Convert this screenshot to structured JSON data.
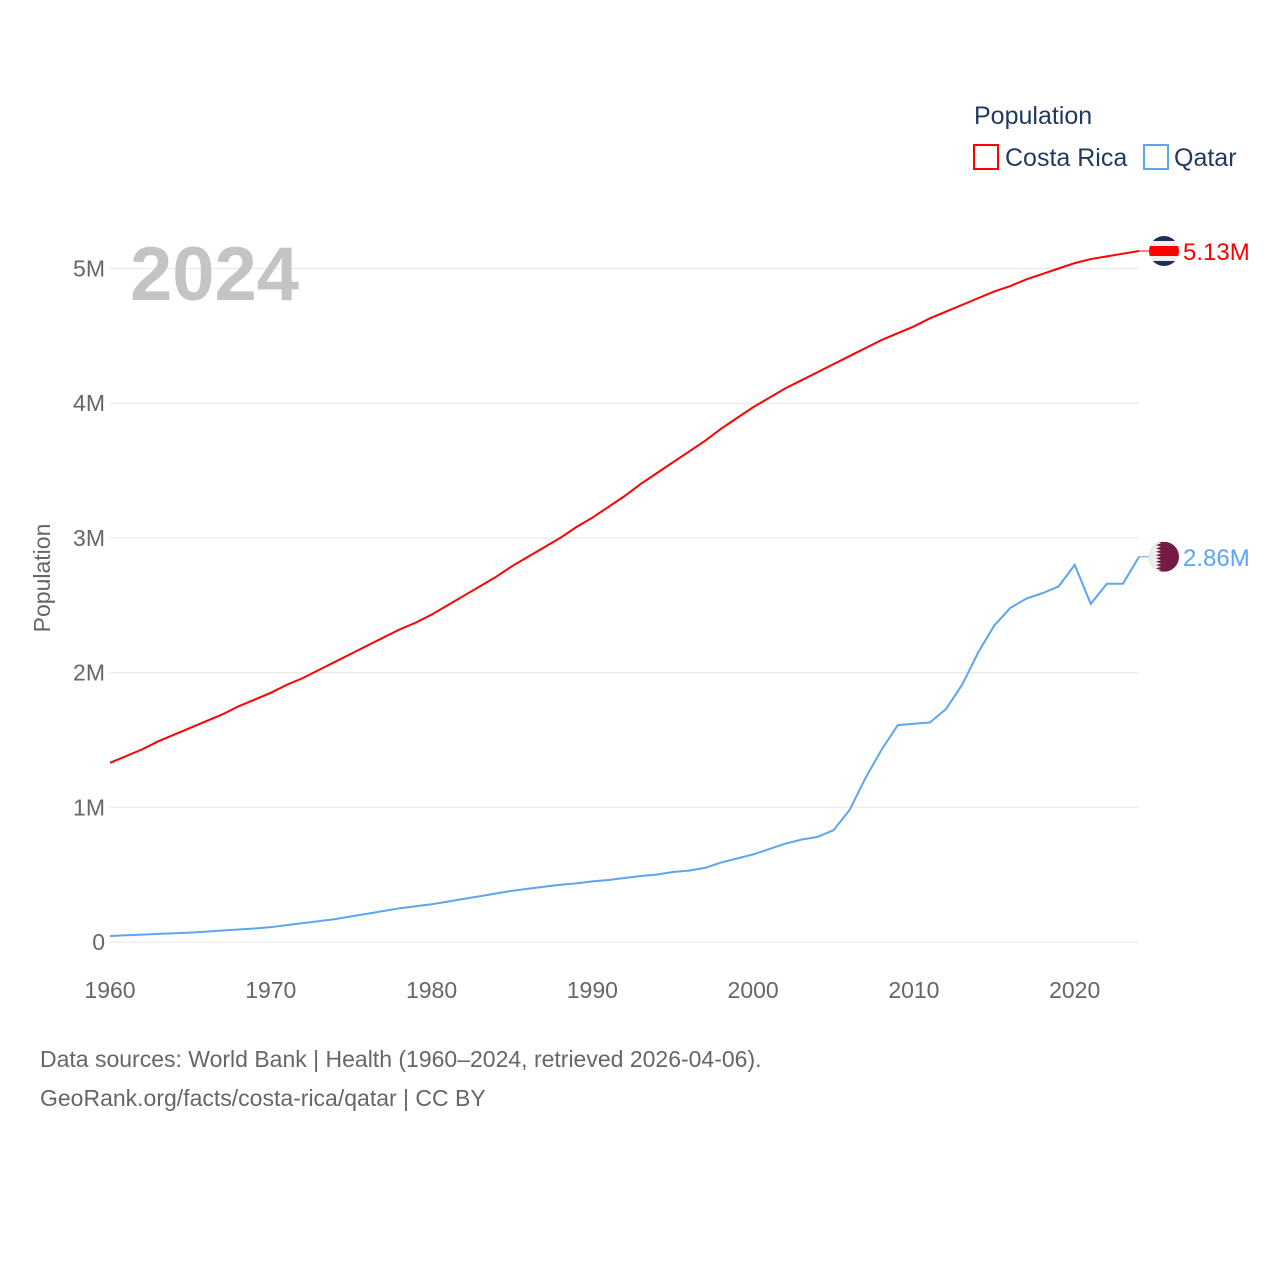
{
  "chart_data": {
    "type": "line",
    "title": "Population",
    "year_watermark": "2024",
    "ylabel": "Population",
    "xlabel": "",
    "xlim": [
      1960,
      2024
    ],
    "ylim": [
      0,
      5200000
    ],
    "x_ticks": [
      "1960",
      "1970",
      "1980",
      "1990",
      "2000",
      "2010",
      "2020"
    ],
    "y_ticks": [
      {
        "value": 0,
        "label": "0"
      },
      {
        "value": 1000000,
        "label": "1M"
      },
      {
        "value": 2000000,
        "label": "2M"
      },
      {
        "value": 3000000,
        "label": "3M"
      },
      {
        "value": 4000000,
        "label": "4M"
      },
      {
        "value": 5000000,
        "label": "5M"
      }
    ],
    "grid": true,
    "legend_position": "top-right",
    "x_start": 1960,
    "series": [
      {
        "name": "Costa Rica",
        "color": "#ff0000",
        "end_label": "5.13M",
        "flag": "costa-rica-flag",
        "values_millions": [
          1.33,
          1.38,
          1.43,
          1.49,
          1.54,
          1.59,
          1.64,
          1.69,
          1.75,
          1.8,
          1.85,
          1.91,
          1.96,
          2.02,
          2.08,
          2.14,
          2.2,
          2.26,
          2.32,
          2.37,
          2.43,
          2.5,
          2.57,
          2.64,
          2.71,
          2.79,
          2.86,
          2.93,
          3.0,
          3.08,
          3.15,
          3.23,
          3.31,
          3.4,
          3.48,
          3.56,
          3.64,
          3.72,
          3.81,
          3.89,
          3.97,
          4.04,
          4.11,
          4.17,
          4.23,
          4.29,
          4.35,
          4.41,
          4.47,
          4.52,
          4.57,
          4.63,
          4.68,
          4.73,
          4.78,
          4.83,
          4.87,
          4.92,
          4.96,
          5.0,
          5.04,
          5.07,
          5.09,
          5.11,
          5.13
        ]
      },
      {
        "name": "Qatar",
        "color": "#5da5ef",
        "end_label": "2.86M",
        "flag": "qatar-flag",
        "values_millions": [
          0.045,
          0.05,
          0.055,
          0.06,
          0.065,
          0.07,
          0.077,
          0.085,
          0.093,
          0.1,
          0.11,
          0.125,
          0.14,
          0.155,
          0.17,
          0.19,
          0.21,
          0.23,
          0.25,
          0.265,
          0.28,
          0.3,
          0.32,
          0.34,
          0.36,
          0.38,
          0.395,
          0.41,
          0.425,
          0.435,
          0.45,
          0.46,
          0.475,
          0.49,
          0.5,
          0.52,
          0.53,
          0.55,
          0.59,
          0.62,
          0.65,
          0.69,
          0.73,
          0.76,
          0.78,
          0.83,
          0.98,
          1.22,
          1.43,
          1.61,
          1.62,
          1.63,
          1.73,
          1.91,
          2.15,
          2.35,
          2.48,
          2.55,
          2.59,
          2.64,
          2.8,
          2.51,
          2.66,
          2.66,
          2.86
        ]
      }
    ]
  },
  "footer": {
    "line1": "Data sources: World Bank | Health (1960–2024, retrieved 2026-04-06).",
    "line2": "GeoRank.org/facts/costa-rica/qatar | CC BY"
  }
}
